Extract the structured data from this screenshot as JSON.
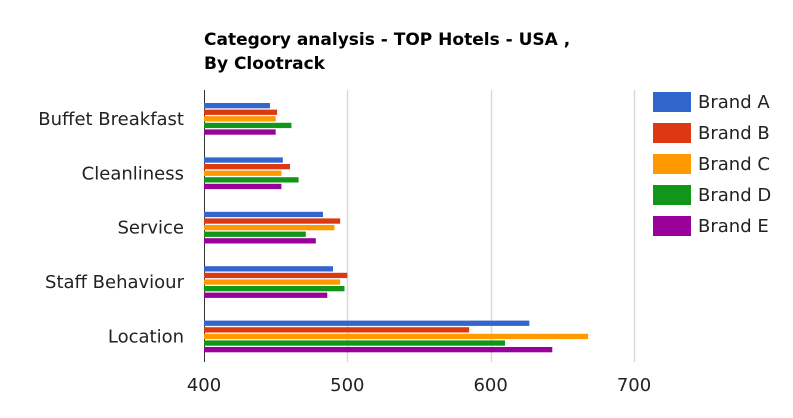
{
  "chart_data": {
    "type": "bar",
    "orientation": "horizontal",
    "title_line1": "Category analysis - TOP Hotels - USA ,",
    "title_line2": "By Clootrack",
    "categories": [
      "Buffet Breakfast",
      "Cleanliness",
      "Service",
      "Staff Behaviour",
      "Location"
    ],
    "series": [
      {
        "name": "Brand A",
        "color": "#3366cc",
        "values": [
          446,
          455,
          483,
          490,
          627
        ]
      },
      {
        "name": "Brand B",
        "color": "#dc3912",
        "values": [
          451,
          460,
          495,
          500,
          585
        ]
      },
      {
        "name": "Brand C",
        "color": "#ff9900",
        "values": [
          450,
          454,
          491,
          495,
          668
        ]
      },
      {
        "name": "Brand D",
        "color": "#109618",
        "values": [
          461,
          466,
          471,
          498,
          610
        ]
      },
      {
        "name": "Brand E",
        "color": "#990099",
        "values": [
          450,
          454,
          478,
          486,
          643
        ]
      }
    ],
    "x_ticks": [
      400,
      500,
      600,
      700
    ],
    "xlim": [
      400,
      700
    ],
    "grid": true,
    "legend_position": "right"
  }
}
